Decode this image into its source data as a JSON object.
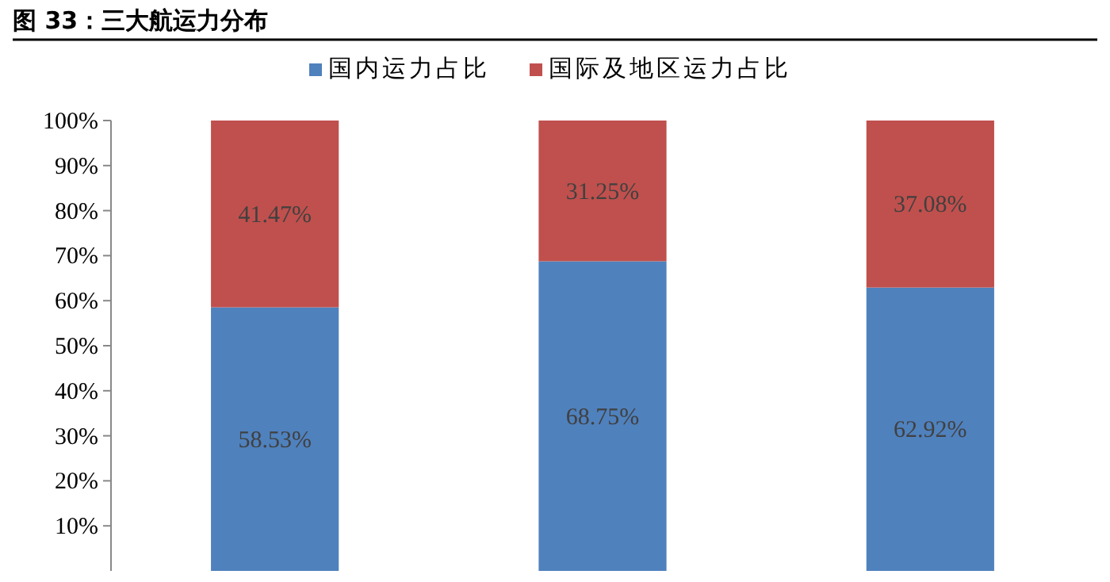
{
  "chart_data": {
    "type": "bar",
    "stacked": true,
    "title": "图 33：三大航运力分布",
    "categories": [
      null,
      null,
      null
    ],
    "series": [
      {
        "name": "国内运力占比",
        "color": "#4f81bd",
        "values": [
          58.53,
          68.75,
          62.92
        ],
        "value_labels": [
          "58.53%",
          "68.75%",
          "62.92%"
        ]
      },
      {
        "name": "国际及地区运力占比",
        "color": "#c0504d",
        "values": [
          41.47,
          31.25,
          37.08
        ],
        "value_labels": [
          "41.47%",
          "31.25%",
          "37.08%"
        ]
      }
    ],
    "ylim": [
      0,
      100
    ],
    "yticks": [
      {
        "value": 10,
        "label": "10%"
      },
      {
        "value": 20,
        "label": "20%"
      },
      {
        "value": 30,
        "label": "30%"
      },
      {
        "value": 40,
        "label": "40%"
      },
      {
        "value": 50,
        "label": "50%"
      },
      {
        "value": 60,
        "label": "60%"
      },
      {
        "value": 70,
        "label": "70%"
      },
      {
        "value": 80,
        "label": "80%"
      },
      {
        "value": 90,
        "label": "90%"
      },
      {
        "value": 100,
        "label": "100%"
      }
    ],
    "legend": "top",
    "grid": false
  }
}
